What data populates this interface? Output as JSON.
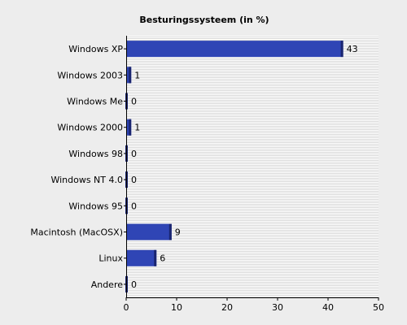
{
  "chart_data": {
    "type": "bar",
    "orientation": "horizontal",
    "title": "Besturingssysteem (in %)",
    "categories": [
      "Windows XP",
      "Windows 2003",
      "Windows Me",
      "Windows 2000",
      "Windows 98",
      "Windows NT 4.0",
      "Windows 95",
      "Macintosh (MacOSX)",
      "Linux",
      "Andere"
    ],
    "values": [
      43,
      1,
      0,
      1,
      0,
      0,
      0,
      9,
      6,
      0
    ],
    "xlim": [
      0,
      50
    ],
    "xticks": [
      0,
      10,
      20,
      30,
      40,
      50
    ],
    "grid": true,
    "bar_color": "#2f45b5"
  }
}
